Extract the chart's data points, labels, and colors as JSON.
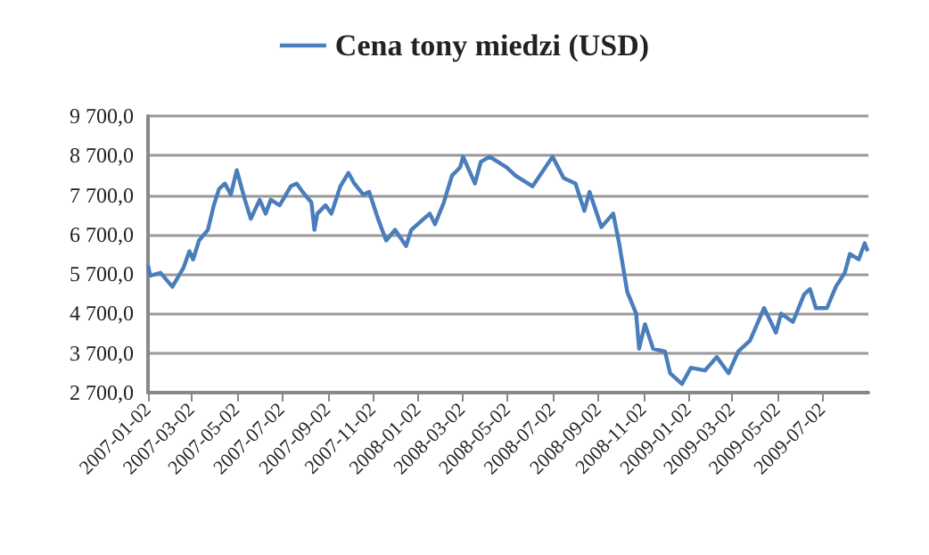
{
  "chart_data": {
    "type": "line",
    "legend": "top",
    "grid": "y",
    "marker": "none",
    "line_style": "solid",
    "xlim": [
      "2007-01-02",
      "2009-09-02"
    ],
    "xticks": [
      "2007-01-02",
      "2007-03-02",
      "2007-05-02",
      "2007-07-02",
      "2007-09-02",
      "2007-11-02",
      "2008-01-02",
      "2008-03-02",
      "2008-05-02",
      "2008-07-02",
      "2008-09-02",
      "2008-11-02",
      "2009-01-02",
      "2009-03-02",
      "2009-05-02",
      "2009-07-02"
    ],
    "ylim": [
      2700,
      9700
    ],
    "yticks": [
      {
        "value": 2700,
        "label": "2 700,0"
      },
      {
        "value": 3700,
        "label": "3 700,0"
      },
      {
        "value": 4700,
        "label": "4 700,0"
      },
      {
        "value": 5700,
        "label": "5 700,0"
      },
      {
        "value": 6700,
        "label": "6 700,0"
      },
      {
        "value": 7700,
        "label": "7 700,0"
      },
      {
        "value": 8700,
        "label": "8 700,0"
      },
      {
        "value": 9700,
        "label": "9 700,0"
      }
    ],
    "series": [
      {
        "name": "Cena tony miedzi (USD)",
        "color": "#4a7ebb",
        "x": [
          "2007-01-02",
          "2007-01-05",
          "2007-01-19",
          "2007-02-04",
          "2007-02-19",
          "2007-02-27",
          "2007-03-04",
          "2007-03-12",
          "2007-03-24",
          "2007-04-01",
          "2007-04-08",
          "2007-04-16",
          "2007-04-24",
          "2007-05-02",
          "2007-05-13",
          "2007-05-21",
          "2007-06-02",
          "2007-06-10",
          "2007-06-17",
          "2007-06-29",
          "2007-07-14",
          "2007-07-22",
          "2007-07-30",
          "2007-08-11",
          "2007-08-15",
          "2007-08-19",
          "2007-08-30",
          "2007-09-07",
          "2007-09-19",
          "2007-09-30",
          "2007-10-08",
          "2007-10-20",
          "2007-10-28",
          "2007-11-09",
          "2007-11-20",
          "2007-12-02",
          "2007-12-17",
          "2007-12-24",
          "2008-01-10",
          "2008-01-18",
          "2008-01-25",
          "2008-02-06",
          "2008-02-17",
          "2008-02-28",
          "2008-03-03",
          "2008-03-19",
          "2008-03-27",
          "2008-04-08",
          "2008-05-01",
          "2008-05-13",
          "2008-06-05",
          "2008-07-02",
          "2008-07-17",
          "2008-08-02",
          "2008-08-14",
          "2008-08-21",
          "2008-09-06",
          "2008-09-22",
          "2008-09-30",
          "2008-10-11",
          "2008-10-23",
          "2008-10-27",
          "2008-11-04",
          "2008-11-15",
          "2008-12-01",
          "2008-12-08",
          "2008-12-24",
          "2009-01-05",
          "2009-01-24",
          "2009-02-09",
          "2009-02-25",
          "2009-03-10",
          "2009-03-26",
          "2009-04-14",
          "2009-04-30",
          "2009-05-07",
          "2009-05-23",
          "2009-06-07",
          "2009-06-15",
          "2009-06-23",
          "2009-07-08",
          "2009-07-20",
          "2009-08-01",
          "2009-08-08",
          "2009-08-20",
          "2009-08-28",
          "2009-09-01"
        ],
        "values": [
          5930,
          5660,
          5730,
          5380,
          5860,
          6280,
          6070,
          6550,
          6820,
          7440,
          7850,
          7990,
          7710,
          8330,
          7580,
          7100,
          7580,
          7230,
          7580,
          7440,
          7920,
          7990,
          7780,
          7510,
          6820,
          7230,
          7440,
          7230,
          7920,
          8260,
          7990,
          7710,
          7780,
          7100,
          6550,
          6820,
          6410,
          6820,
          7100,
          7230,
          6960,
          7510,
          8190,
          8400,
          8670,
          7990,
          8540,
          8670,
          8400,
          8190,
          7920,
          8670,
          8130,
          7990,
          7300,
          7780,
          6890,
          7230,
          6480,
          5250,
          4700,
          3810,
          4430,
          3810,
          3740,
          3190,
          2920,
          3330,
          3260,
          3600,
          3190,
          3740,
          4020,
          4840,
          4220,
          4700,
          4490,
          5180,
          5320,
          4840,
          4840,
          5380,
          5730,
          6210,
          6070,
          6480,
          6280
        ]
      }
    ]
  }
}
